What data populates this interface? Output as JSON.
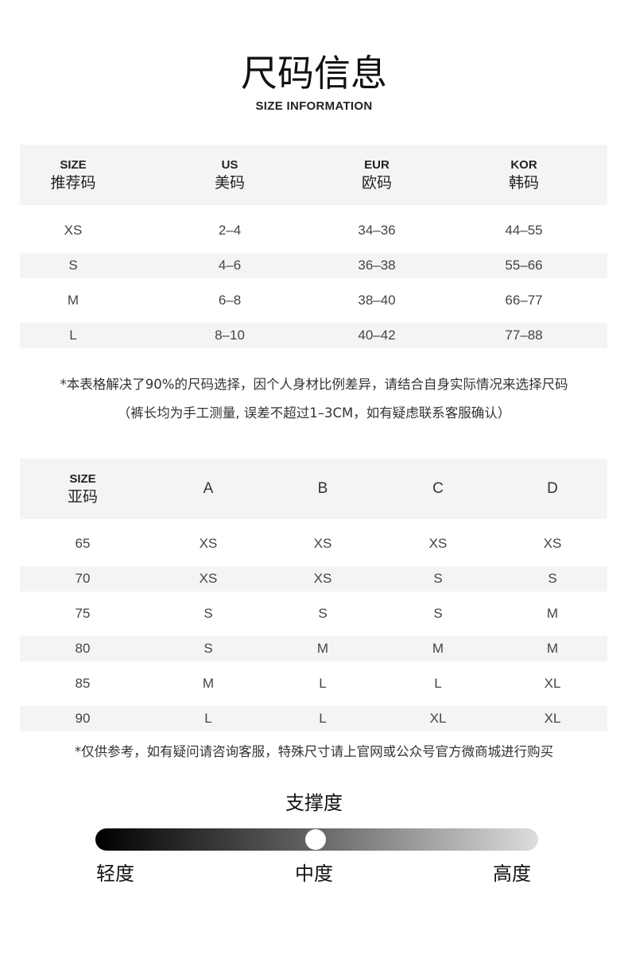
{
  "header": {
    "title": "尺码信息",
    "subtitle": "SIZE INFORMATION"
  },
  "table1": {
    "headers": [
      {
        "en": "SIZE",
        "zh": "推荐码"
      },
      {
        "en": "US",
        "zh": "美码"
      },
      {
        "en": "EUR",
        "zh": "欧码"
      },
      {
        "en": "KOR",
        "zh": "韩码"
      }
    ],
    "rows": [
      [
        "XS",
        "2–4",
        "34–36",
        "44–55"
      ],
      [
        "S",
        "4–6",
        "36–38",
        "55–66"
      ],
      [
        "M",
        "6–8",
        "38–40",
        "66–77"
      ],
      [
        "L",
        "8–10",
        "40–42",
        "77–88"
      ]
    ]
  },
  "notes": {
    "note1": "*本表格解决了90%的尺码选择，因个人身材比例差异，请结合自身实际情况来选择尺码",
    "note2": "（裤长均为手工测量, 误差不超过1–3CM，如有疑虑联系客服确认）",
    "note3": "*仅供参考，如有疑问请咨询客服，特殊尺寸请上官网或公众号官方微商城进行购买"
  },
  "table2": {
    "first_header": {
      "en": "SIZE",
      "zh": "亚码"
    },
    "headers": [
      "A",
      "B",
      "C",
      "D"
    ],
    "rows": [
      [
        "65",
        "XS",
        "XS",
        "XS",
        "XS"
      ],
      [
        "70",
        "XS",
        "XS",
        "S",
        "S"
      ],
      [
        "75",
        "S",
        "S",
        "S",
        "M"
      ],
      [
        "80",
        "S",
        "M",
        "M",
        "M"
      ],
      [
        "85",
        "M",
        "L",
        "L",
        "XL"
      ],
      [
        "90",
        "L",
        "L",
        "XL",
        "XL"
      ]
    ]
  },
  "support": {
    "title": "支撑度",
    "levels": [
      "轻度",
      "中度",
      "高度"
    ],
    "level": 0.5,
    "gradient_colors": [
      "#000000",
      "#dddddd"
    ]
  }
}
